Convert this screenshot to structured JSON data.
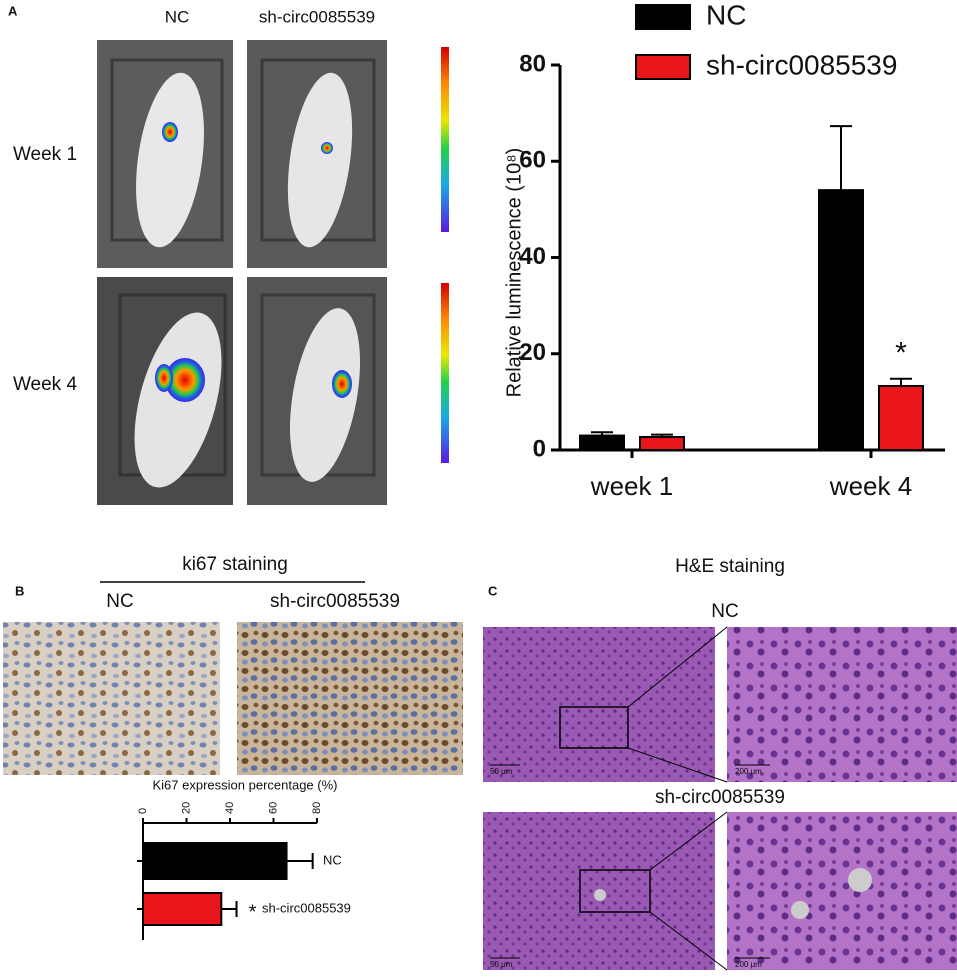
{
  "figure": {
    "panel_a": {
      "label": "A",
      "columns": [
        "NC",
        "sh-circ0085539"
      ],
      "rows": [
        "Week 1",
        "Week 4"
      ]
    },
    "panel_b": {
      "label": "B",
      "title": "ki67 staining",
      "columns": [
        "NC",
        "sh-circ0085539"
      ]
    },
    "panel_c": {
      "label": "C",
      "title": "H&E staining",
      "rows": [
        "NC",
        "sh-circ0085539"
      ],
      "scale_bars": [
        "50 μm",
        "200 μm"
      ]
    }
  },
  "chart_data": [
    {
      "type": "bar",
      "ylabel": "Relative luminescence (10⁸)",
      "categories": [
        "week 1",
        "week 4"
      ],
      "series": [
        {
          "name": "NC",
          "color": "#000000",
          "values": [
            3,
            54
          ],
          "errors": [
            0.7,
            13.3
          ]
        },
        {
          "name": "sh-circ0085539",
          "color": "#e8151b",
          "values": [
            2.7,
            13.3
          ],
          "errors": [
            0.5,
            1.5
          ]
        }
      ],
      "significance_label": "*",
      "ylim": [
        0,
        80
      ],
      "yticks": [
        0,
        20,
        40,
        60,
        80
      ],
      "legend": "top"
    },
    {
      "type": "hbar",
      "title": "Ki67 expression percentage (%)",
      "categories": [
        "NC",
        "sh-circ0085539"
      ],
      "values": [
        66,
        36
      ],
      "errors": [
        12,
        7
      ],
      "colors": [
        "#000000",
        "#e8151b"
      ],
      "significance_label": "*",
      "xlim": [
        0,
        80
      ],
      "xticks": [
        0,
        20,
        40,
        60,
        80
      ]
    }
  ]
}
